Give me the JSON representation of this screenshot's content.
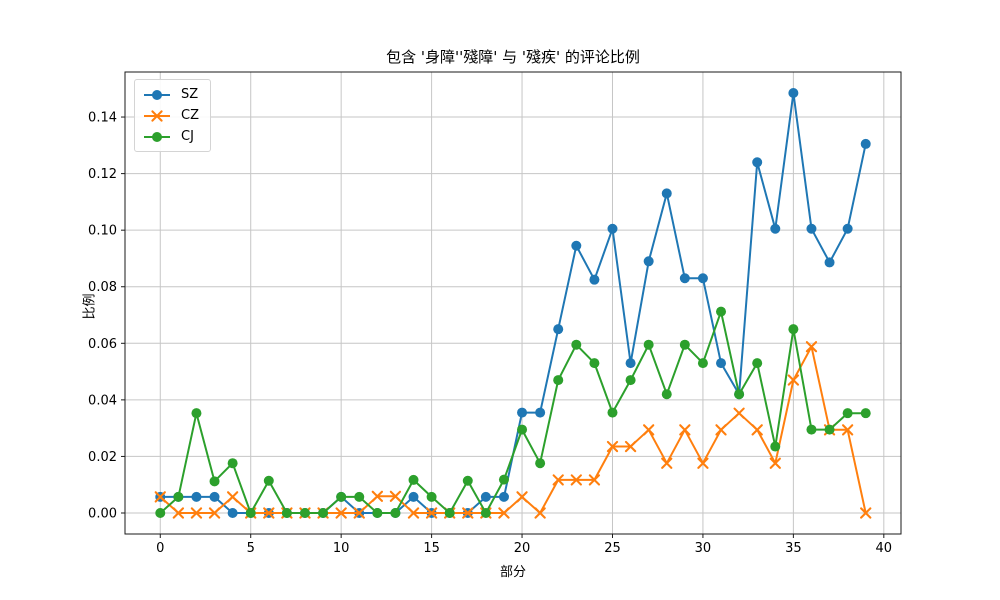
{
  "chart_data": {
    "type": "line",
    "title": "包含 '身障''殘障' 与 '殘疾' 的评论比例",
    "xlabel": "部分",
    "ylabel": "比例",
    "grid": true,
    "legend_position": "upper left",
    "xlim": [
      -1.95,
      40.95
    ],
    "ylim": [
      -0.007425,
      0.155925
    ],
    "xticks": [
      0,
      5,
      10,
      15,
      20,
      25,
      30,
      35,
      40
    ],
    "yticks": [
      0.0,
      0.02,
      0.04,
      0.06,
      0.08,
      0.1,
      0.12,
      0.14
    ],
    "ytick_labels": [
      "0.00",
      "0.02",
      "0.04",
      "0.06",
      "0.08",
      "0.10",
      "0.12",
      "0.14"
    ],
    "x": [
      0,
      1,
      2,
      3,
      4,
      5,
      6,
      7,
      8,
      9,
      10,
      11,
      12,
      13,
      14,
      15,
      16,
      17,
      18,
      19,
      20,
      21,
      22,
      23,
      24,
      25,
      26,
      27,
      28,
      29,
      30,
      31,
      32,
      33,
      34,
      35,
      36,
      37,
      38,
      39
    ],
    "series": [
      {
        "name": "SZ",
        "color": "#1f77b4",
        "marker": "circle",
        "values": [
          0.0057,
          0.0057,
          0.0057,
          0.0057,
          0,
          0,
          0,
          0,
          0,
          0,
          0.0057,
          0,
          0,
          0,
          0.0057,
          0,
          0,
          0,
          0.0057,
          0.0057,
          0.0355,
          0.0355,
          0.065,
          0.0945,
          0.0825,
          0.1005,
          0.053,
          0.089,
          0.113,
          0.083,
          0.083,
          0.053,
          0.042,
          0.124,
          0.1005,
          0.1485,
          0.1005,
          0.0886,
          0.1005,
          0.1305
        ]
      },
      {
        "name": "CZ",
        "color": "#ff7f0e",
        "marker": "x",
        "values": [
          0.0057,
          0,
          0,
          0,
          0.0057,
          0,
          0,
          0,
          0,
          0,
          0,
          0,
          0.0059,
          0.0059,
          0,
          0,
          0,
          0,
          0,
          0,
          0.0057,
          0,
          0.0117,
          0.0117,
          0.0117,
          0.0235,
          0.0235,
          0.0294,
          0.0176,
          0.0294,
          0.0176,
          0.0294,
          0.0353,
          0.0294,
          0.0176,
          0.047,
          0.0588,
          0.0294,
          0.0294,
          0
        ]
      },
      {
        "name": "CJ",
        "color": "#2ca02c",
        "marker": "circle",
        "values": [
          0,
          0.0057,
          0.0353,
          0.0112,
          0.0176,
          0,
          0.0114,
          0,
          0,
          0,
          0.0057,
          0.0057,
          0,
          0,
          0.0117,
          0.0057,
          0,
          0.0114,
          0,
          0.0118,
          0.0295,
          0.0176,
          0.047,
          0.0595,
          0.053,
          0.0355,
          0.047,
          0.0595,
          0.042,
          0.0595,
          0.053,
          0.0712,
          0.042,
          0.053,
          0.0235,
          0.065,
          0.0295,
          0.0295,
          0.0353,
          0.0353
        ]
      }
    ]
  }
}
